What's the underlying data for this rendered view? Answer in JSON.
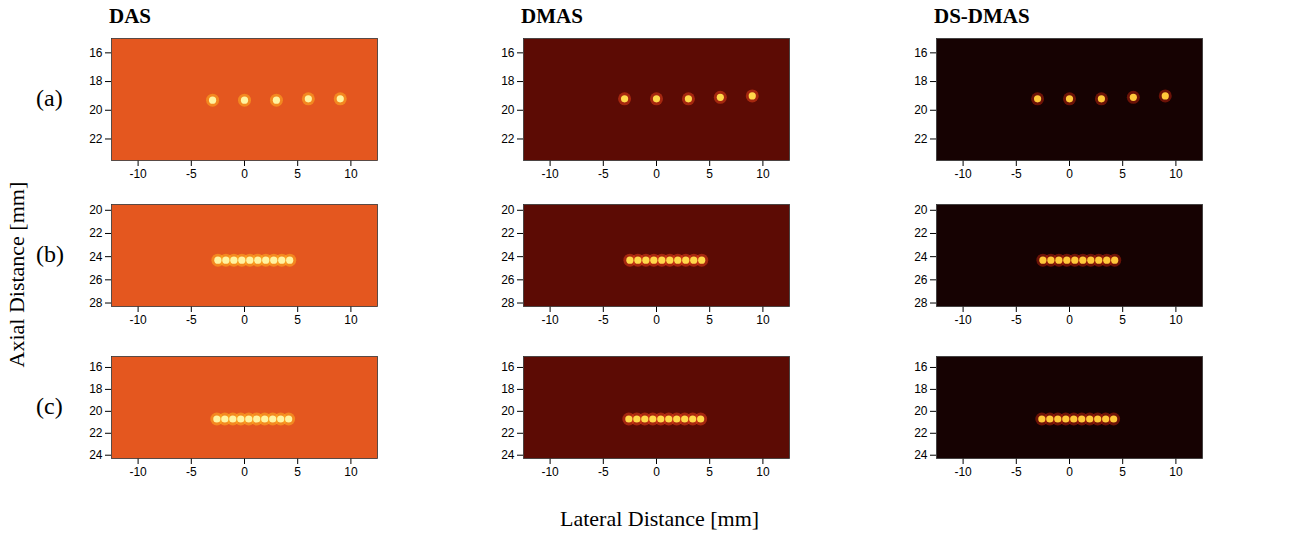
{
  "figure": {
    "columns": [
      "DAS",
      "DMAS",
      "DS-DMAS"
    ],
    "rows": [
      "(a)",
      "(b)",
      "(c)"
    ],
    "xlabel": "Lateral Distance [mm]",
    "ylabel": "Axial Distance [mm]"
  },
  "chart_data": [
    {
      "type": "scatter",
      "x": [
        -3,
        0,
        3,
        6,
        9
      ],
      "y": [
        19.3,
        19.3,
        19.3,
        19.2,
        19.2
      ],
      "xlim": [
        -12.5,
        12.5
      ],
      "xticks": [
        -10,
        -5,
        0,
        5,
        10
      ],
      "ylim": [
        23.5,
        15
      ],
      "yticks": [
        16,
        18,
        20,
        22
      ],
      "color": "#fff3a0"
    },
    {
      "type": "scatter",
      "x": [
        -3,
        0,
        3,
        6,
        9
      ],
      "y": [
        19.2,
        19.2,
        19.2,
        19.1,
        19.0
      ],
      "xlim": [
        -12.5,
        12.5
      ],
      "xticks": [
        -10,
        -5,
        0,
        5,
        10
      ],
      "ylim": [
        23.5,
        15
      ],
      "yticks": [
        16,
        18,
        20,
        22
      ],
      "color": "#ffd84a"
    },
    {
      "type": "scatter",
      "x": [
        -3,
        0,
        3,
        6,
        9
      ],
      "y": [
        19.2,
        19.2,
        19.2,
        19.1,
        19.0
      ],
      "xlim": [
        -12.5,
        12.5
      ],
      "xticks": [
        -10,
        -5,
        0,
        5,
        10
      ],
      "ylim": [
        23.5,
        15
      ],
      "yticks": [
        16,
        18,
        20,
        22
      ],
      "color": "#ffc83a"
    },
    {
      "type": "scatter",
      "x": [
        -2.5,
        -1.75,
        -1,
        -0.25,
        0.5,
        1.25,
        2,
        2.75,
        3.5,
        4.25
      ],
      "y": [
        24.3,
        24.3,
        24.3,
        24.3,
        24.3,
        24.3,
        24.3,
        24.3,
        24.3,
        24.3
      ],
      "xlim": [
        -12.5,
        12.5
      ],
      "xticks": [
        -10,
        -5,
        0,
        5,
        10
      ],
      "ylim": [
        28.3,
        19.5
      ],
      "yticks": [
        20,
        22,
        24,
        26,
        28
      ],
      "color": "#fff3a0"
    },
    {
      "type": "scatter",
      "x": [
        -2.5,
        -1.75,
        -1,
        -0.25,
        0.5,
        1.25,
        2,
        2.75,
        3.5,
        4.25
      ],
      "y": [
        24.3,
        24.3,
        24.3,
        24.3,
        24.3,
        24.3,
        24.3,
        24.3,
        24.3,
        24.3
      ],
      "xlim": [
        -12.5,
        12.5
      ],
      "xticks": [
        -10,
        -5,
        0,
        5,
        10
      ],
      "ylim": [
        28.3,
        19.5
      ],
      "yticks": [
        20,
        22,
        24,
        26,
        28
      ],
      "color": "#ffd84a"
    },
    {
      "type": "scatter",
      "x": [
        -2.5,
        -1.75,
        -1,
        -0.25,
        0.5,
        1.25,
        2,
        2.75,
        3.5,
        4.25
      ],
      "y": [
        24.3,
        24.3,
        24.3,
        24.3,
        24.3,
        24.3,
        24.3,
        24.3,
        24.3,
        24.3
      ],
      "xlim": [
        -12.5,
        12.5
      ],
      "xticks": [
        -10,
        -5,
        0,
        5,
        10
      ],
      "ylim": [
        28.3,
        19.5
      ],
      "yticks": [
        20,
        22,
        24,
        26,
        28
      ],
      "color": "#ffc83a"
    },
    {
      "type": "scatter",
      "x": [
        -2.6,
        -1.85,
        -1.1,
        -0.35,
        0.4,
        1.15,
        1.9,
        2.65,
        3.4,
        4.15
      ],
      "y": [
        20.7,
        20.7,
        20.7,
        20.7,
        20.7,
        20.7,
        20.7,
        20.7,
        20.7,
        20.7
      ],
      "xlim": [
        -12.5,
        12.5
      ],
      "xticks": [
        -10,
        -5,
        0,
        5,
        10
      ],
      "ylim": [
        24.3,
        15
      ],
      "yticks": [
        16,
        18,
        20,
        22,
        24
      ],
      "color": "#fff3a0"
    },
    {
      "type": "scatter",
      "x": [
        -2.6,
        -1.85,
        -1.1,
        -0.35,
        0.4,
        1.15,
        1.9,
        2.65,
        3.4,
        4.15
      ],
      "y": [
        20.7,
        20.7,
        20.7,
        20.7,
        20.7,
        20.7,
        20.7,
        20.7,
        20.7,
        20.7
      ],
      "xlim": [
        -12.5,
        12.5
      ],
      "xticks": [
        -10,
        -5,
        0,
        5,
        10
      ],
      "ylim": [
        24.3,
        15
      ],
      "yticks": [
        16,
        18,
        20,
        22,
        24
      ],
      "color": "#ffd84a"
    },
    {
      "type": "scatter",
      "x": [
        -2.6,
        -1.85,
        -1.1,
        -0.35,
        0.4,
        1.15,
        1.9,
        2.65,
        3.4,
        4.15
      ],
      "y": [
        20.7,
        20.7,
        20.7,
        20.7,
        20.7,
        20.7,
        20.7,
        20.7,
        20.7,
        20.7
      ],
      "xlim": [
        -12.5,
        12.5
      ],
      "xticks": [
        -10,
        -5,
        0,
        5,
        10
      ],
      "ylim": [
        24.3,
        15
      ],
      "yticks": [
        16,
        18,
        20,
        22,
        24
      ],
      "color": "#ffc83a"
    }
  ]
}
